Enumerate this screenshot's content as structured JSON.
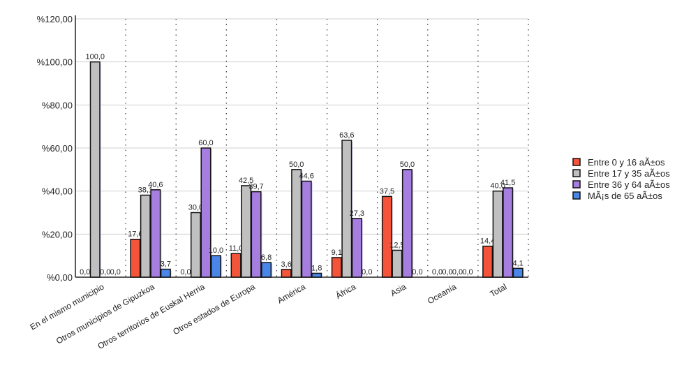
{
  "chart_data": {
    "type": "bar",
    "title": "",
    "xlabel": "",
    "ylabel": "",
    "ylim": [
      0,
      120
    ],
    "yticks": [
      "%0,00",
      "%20,00",
      "%40,00",
      "%60,00",
      "%80,00",
      "%100,00",
      "%120,00"
    ],
    "ytick_values": [
      0,
      20,
      40,
      60,
      80,
      100,
      120
    ],
    "grid": true,
    "legend_position": "right",
    "categories": [
      "En el mismo municipio",
      "Otros municipios de Gipuzkoa",
      "Otros territorios de Euskal Herria",
      "Otros estados de Europa",
      "América",
      "África",
      "Asia",
      "Oceanía",
      "Total"
    ],
    "series": [
      {
        "name": "Entre 0 y 16 aÃ±os",
        "color": "#f4553a",
        "values": [
          0,
          17.6,
          0,
          11.0,
          3.6,
          9.1,
          37.5,
          0,
          14.4
        ],
        "labels": [
          "0,0",
          "17,6",
          "0,0",
          "11,0",
          "3,6",
          "9,1",
          "37,5",
          "0,0",
          "14,4"
        ]
      },
      {
        "name": "Entre 17 y 35 aÃ±os",
        "color": "#c0c0c0",
        "values": [
          100,
          38.1,
          30,
          42.5,
          50,
          63.6,
          12.5,
          0,
          40.0
        ],
        "labels": [
          "100,0",
          "38,1",
          "30,0",
          "42,5",
          "50,0",
          "63,6",
          "12,5",
          "0,0",
          "40,0"
        ]
      },
      {
        "name": "Entre 36 y 64 aÃ±os",
        "color": "#a57ee0",
        "values": [
          0,
          40.6,
          60,
          39.7,
          44.6,
          27.3,
          50,
          0,
          41.5
        ],
        "labels": [
          "0,0",
          "40,6",
          "60,0",
          "39,7",
          "44,6",
          "27,3",
          "50,0",
          "0,0",
          "41,5"
        ]
      },
      {
        "name": "MÃ¡s de 65 aÃ±os",
        "color": "#4a86e8",
        "values": [
          0,
          3.7,
          10,
          6.8,
          1.8,
          0,
          0,
          0,
          4.1
        ],
        "labels": [
          "0,0",
          "3,7",
          "10,0",
          "6,8",
          "1,8",
          "0,0",
          "0,0",
          "0,0",
          "4,1"
        ]
      }
    ]
  }
}
